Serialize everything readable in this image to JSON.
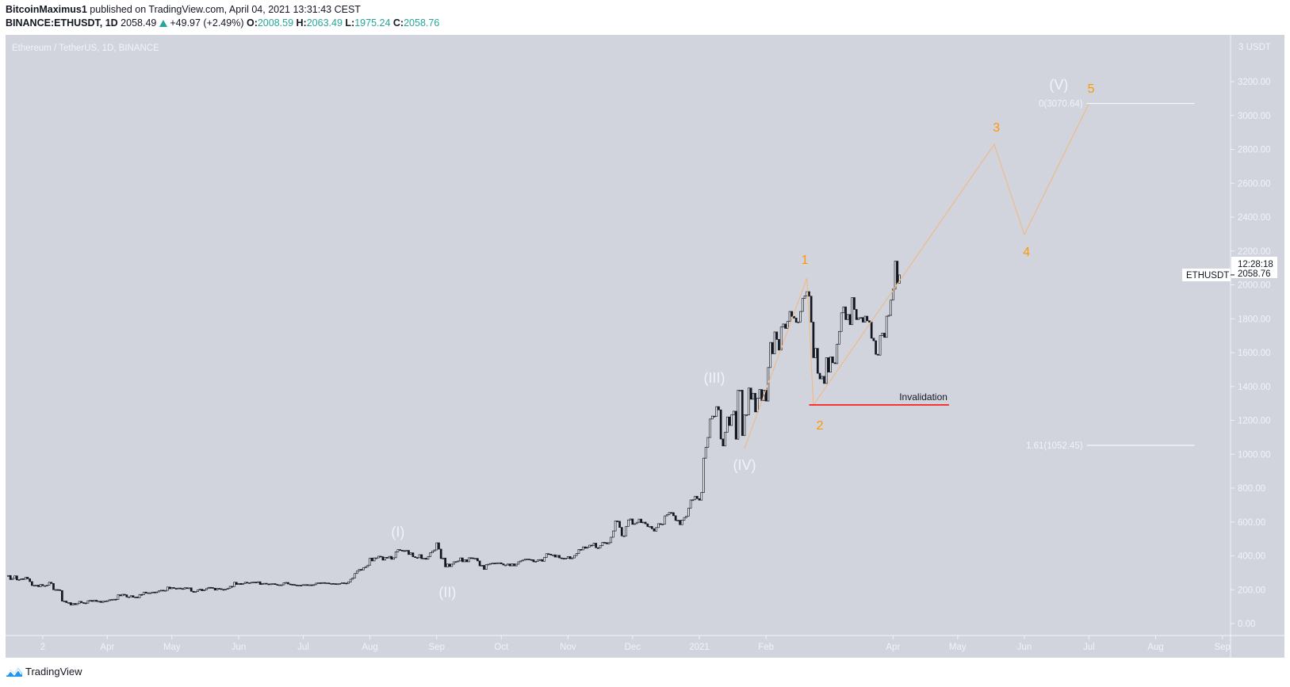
{
  "header": {
    "author": "BitcoinMaximus1",
    "published": " published on TradingView.com, April 04, 2021 13:31:43 CEST",
    "symbol": "BINANCE:ETHUSDT, 1D",
    "last": "2058.49",
    "change": "+49.97 (+2.49%)",
    "o_label": "O:",
    "o": "2008.59",
    "h_label": "H:",
    "h": "2063.49",
    "l_label": "L:",
    "l": "1975.24",
    "c_label": "C:",
    "c": "2058.76",
    "change_icon": "triangle-up-icon"
  },
  "footer": {
    "brand": "TradingView",
    "logo_icon": "tradingview-logo-icon"
  },
  "colors": {
    "pane": "#d1d4dc",
    "up": "#ffffff",
    "down": "#131722",
    "wave_count": "#ff9800",
    "wave_line": "#f2b77c",
    "invalidation": "#ff0000",
    "fib": "#ffffff",
    "label": "#f0f3fa",
    "change": "#26a69a"
  },
  "chart_data": {
    "type": "candlestick",
    "title": "Ethereum / TetherUS, 1D, BINANCE",
    "y_unit_label": "3 USDT",
    "ylim": [
      0,
      3300
    ],
    "y_ticks": [
      "0.00",
      "200.00",
      "400.00",
      "600.00",
      "800.00",
      "1000.00",
      "1200.00",
      "1400.00",
      "1600.00",
      "1800.00",
      "2000.00",
      "2200.00",
      "2400.00",
      "2600.00",
      "2800.00",
      "3000.00",
      "3200.00"
    ],
    "x_ticks": [
      {
        "label": "2",
        "date": "2020-03-02"
      },
      {
        "label": "Apr",
        "date": "2020-04-01"
      },
      {
        "label": "May",
        "date": "2020-05-01"
      },
      {
        "label": "Jun",
        "date": "2020-06-01"
      },
      {
        "label": "Jul",
        "date": "2020-07-01"
      },
      {
        "label": "Aug",
        "date": "2020-08-01"
      },
      {
        "label": "Sep",
        "date": "2020-09-01"
      },
      {
        "label": "Oct",
        "date": "2020-10-01"
      },
      {
        "label": "Nov",
        "date": "2020-11-01"
      },
      {
        "label": "Dec",
        "date": "2020-12-01"
      },
      {
        "label": "2021",
        "date": "2021-01-01"
      },
      {
        "label": "Feb",
        "date": "2021-02-01"
      },
      {
        "label": "Apr",
        "date": "2021-04-01"
      },
      {
        "label": "May",
        "date": "2021-05-01"
      },
      {
        "label": "Jun",
        "date": "2021-06-01"
      },
      {
        "label": "Jul",
        "date": "2021-07-01"
      },
      {
        "label": "Aug",
        "date": "2021-08-01"
      },
      {
        "label": "Sep",
        "date": "2021-09-01"
      }
    ],
    "price_tag": {
      "symbol": "ETHUSDT",
      "price": "2058.76",
      "countdown": "12:28:18",
      "value": 2058.76
    },
    "daily_closes_by_month": [
      {
        "month": "2020-02",
        "first_day": 15,
        "close": [
          284,
          260,
          267,
          282,
          258,
          260,
          265,
          262,
          274,
          265,
          248,
          225,
          226,
          227,
          218
        ]
      },
      {
        "month": "2020-03",
        "first_day": 1,
        "close": [
          231,
          224,
          224,
          227,
          244,
          237,
          200,
          201,
          200,
          195,
          133,
          133,
          124,
          124,
          110,
          119,
          112,
          118,
          131,
          124,
          122,
          121,
          135,
          137,
          131,
          138,
          131,
          132,
          125,
          132,
          133
        ]
      },
      {
        "month": "2020-04",
        "first_day": 1,
        "close": [
          135,
          141,
          142,
          144,
          143,
          170,
          164,
          173,
          170,
          157,
          158,
          165,
          156,
          157,
          153,
          172,
          171,
          186,
          180,
          182,
          182,
          186,
          185,
          187,
          194,
          197,
          194,
          196,
          216,
          206
        ]
      },
      {
        "month": "2020-05",
        "first_day": 1,
        "close": [
          213,
          208,
          207,
          210,
          207,
          204,
          212,
          211,
          211,
          191,
          185,
          189,
          199,
          203,
          194,
          199,
          207,
          214,
          213,
          209,
          198,
          208,
          206,
          202,
          200,
          204,
          208,
          220,
          219,
          244,
          231
        ]
      },
      {
        "month": "2020-06",
        "first_day": 1,
        "close": [
          237,
          231,
          237,
          244,
          240,
          241,
          244,
          245,
          243,
          247,
          231,
          237,
          238,
          234,
          230,
          235,
          236,
          231,
          228,
          229,
          229,
          241,
          243,
          234,
          232,
          231,
          228,
          225,
          227,
          226
        ]
      },
      {
        "month": "2020-07",
        "first_day": 1,
        "close": [
          230,
          230,
          226,
          229,
          228,
          230,
          239,
          241,
          240,
          242,
          239,
          240,
          236,
          237,
          236,
          235,
          235,
          237,
          241,
          239,
          237,
          246,
          262,
          270,
          296,
          310,
          320,
          317,
          330,
          336,
          345
        ]
      },
      {
        "month": "2020-08",
        "first_day": 1,
        "close": [
          387,
          370,
          388,
          388,
          398,
          395,
          375,
          391,
          388,
          397,
          380,
          389,
          424,
          437,
          433,
          431,
          427,
          432,
          408,
          418,
          395,
          390,
          389,
          407,
          383,
          386,
          380,
          395,
          418,
          428,
          435
        ]
      },
      {
        "month": "2020-09",
        "first_day": 1,
        "close": [
          477,
          440,
          384,
          387,
          335,
          352,
          337,
          351,
          365,
          366,
          370,
          388,
          365,
          377,
          365,
          389,
          388,
          385,
          385,
          370,
          341,
          344,
          320,
          348,
          351,
          355,
          357,
          354,
          359,
          359
        ]
      },
      {
        "month": "2020-10",
        "first_day": 1,
        "close": [
          353,
          346,
          346,
          352,
          341,
          353,
          341,
          351,
          365,
          370,
          375,
          380,
          381,
          378,
          377,
          365,
          368,
          376,
          378,
          368,
          391,
          413,
          410,
          405,
          406,
          393,
          403,
          388,
          386,
          382,
          386
        ]
      },
      {
        "month": "2020-11",
        "first_day": 1,
        "close": [
          396,
          383,
          388,
          402,
          414,
          438,
          435,
          453,
          445,
          452,
          463,
          462,
          475,
          448,
          447,
          460,
          480,
          478,
          471,
          478,
          510,
          547,
          606,
          604,
          568,
          518,
          518,
          574,
          612,
          618
        ]
      },
      {
        "month": "2020-12",
        "first_day": 1,
        "close": [
          586,
          590,
          598,
          617,
          596,
          599,
          589,
          573,
          574,
          560,
          546,
          567,
          590,
          586,
          588,
          636,
          643,
          656,
          655,
          637,
          609,
          610,
          584,
          611,
          626,
          635,
          682,
          730,
          731,
          752,
          738
        ]
      },
      {
        "month": "2021-01",
        "first_day": 1,
        "close": [
          729,
          774,
          977,
          1041,
          1099,
          1208,
          1225,
          1224,
          1281,
          1262,
          1090,
          1049,
          1130,
          1220,
          1170,
          1233,
          1254,
          1089,
          1378,
          1378,
          1110,
          1232,
          1233,
          1391,
          1325,
          1360,
          1250,
          1331,
          1382,
          1316,
          1378
        ]
      },
      {
        "month": "2021-02",
        "first_day": 1,
        "close": [
          1314,
          1512,
          1660,
          1593,
          1722,
          1678,
          1615,
          1751,
          1769,
          1743,
          1784,
          1843,
          1814,
          1804,
          1779,
          1781,
          1843,
          1920,
          1935,
          1960,
          1933,
          1780,
          1570,
          1625,
          1478,
          1445,
          1460,
          1418
        ]
      },
      {
        "month": "2021-03",
        "first_day": 1,
        "close": [
          1570,
          1485,
          1575,
          1540,
          1535,
          1650,
          1725,
          1835,
          1870,
          1795,
          1825,
          1765,
          1925,
          1855,
          1795,
          1805,
          1807,
          1780,
          1815,
          1788,
          1780,
          1685,
          1670,
          1590,
          1585,
          1700,
          1715,
          1690,
          1815,
          1820,
          1910
        ]
      },
      {
        "month": "2021-04",
        "first_day": 1,
        "close": [
          1975,
          2140,
          2010,
          2058.76
        ]
      }
    ],
    "wave_path": [
      {
        "date": "2021-01-22",
        "price": 1034
      },
      {
        "date": "2021-02-20",
        "price": 2040
      },
      {
        "date": "2021-02-23",
        "price": 1290
      },
      {
        "date": "2021-05-18",
        "price": 2830
      },
      {
        "date": "2021-06-01",
        "price": 2297
      },
      {
        "date": "2021-07-01",
        "price": 3070.64
      }
    ],
    "wave_labels": [
      {
        "text": "(I)",
        "date": "2020-08-14",
        "price": 540,
        "kind": "major"
      },
      {
        "text": "(II)",
        "date": "2020-09-06",
        "price": 185,
        "kind": "major"
      },
      {
        "text": "(III)",
        "date": "2021-01-08",
        "price": 1450,
        "kind": "major"
      },
      {
        "text": "(IV)",
        "date": "2021-01-22",
        "price": 936,
        "kind": "major"
      },
      {
        "text": "(V)",
        "date": "2021-06-17",
        "price": 3181,
        "kind": "major"
      },
      {
        "text": "1",
        "date": "2021-02-19",
        "price": 2152,
        "kind": "minor"
      },
      {
        "text": "2",
        "date": "2021-02-26",
        "price": 1174,
        "kind": "minor"
      },
      {
        "text": "3",
        "date": "2021-05-19",
        "price": 2933,
        "kind": "minor"
      },
      {
        "text": "4",
        "date": "2021-06-02",
        "price": 2199,
        "kind": "minor"
      },
      {
        "text": "5",
        "date": "2021-07-02",
        "price": 3162,
        "kind": "minor"
      }
    ],
    "invalidation": {
      "label": "Invalidation",
      "price": 1291,
      "from": "2021-02-21",
      "to": "2021-04-27"
    },
    "fib_levels": [
      {
        "label": "0(3070.64)",
        "price": 3070.64,
        "from": "2021-06-30",
        "to": "2021-08-19"
      },
      {
        "label": "1.61(1052.45)",
        "price": 1052.45,
        "from": "2021-06-30",
        "to": "2021-08-19"
      }
    ]
  }
}
